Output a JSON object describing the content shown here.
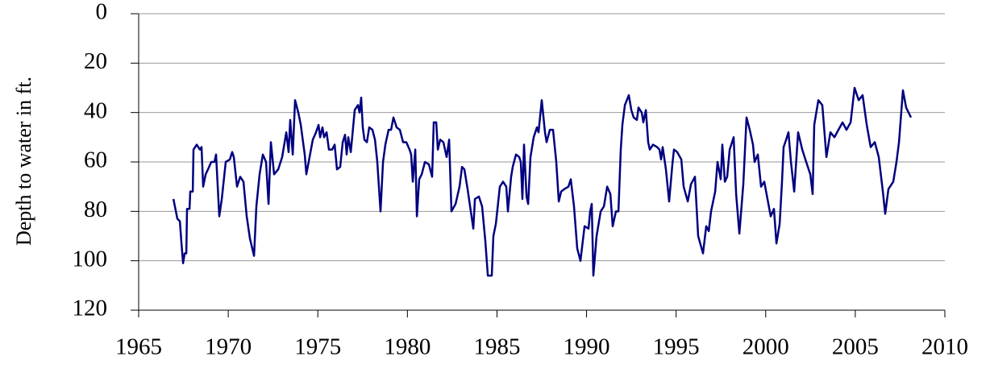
{
  "chart_data": {
    "type": "line",
    "y_label": "Depth to water in ft.",
    "color": "#000080",
    "y_inverted": true,
    "grid": true,
    "xlim": [
      1965,
      2010
    ],
    "xticks": [
      1965,
      1970,
      1975,
      1980,
      1985,
      1990,
      1995,
      2000,
      2005,
      2010
    ],
    "ylim": [
      0,
      120
    ],
    "yticks": [
      0,
      20,
      40,
      60,
      80,
      100,
      120
    ],
    "x": [
      1966.94,
      1967.16,
      1967.3,
      1967.39,
      1967.48,
      1967.57,
      1967.66,
      1967.7,
      1967.84,
      1967.88,
      1968.02,
      1968.06,
      1968.24,
      1968.42,
      1968.51,
      1968.6,
      1968.74,
      1968.87,
      1969.05,
      1969.23,
      1969.32,
      1969.5,
      1969.64,
      1969.86,
      1970.09,
      1970.22,
      1970.31,
      1970.49,
      1970.67,
      1970.85,
      1971.03,
      1971.21,
      1971.44,
      1971.57,
      1971.75,
      1971.93,
      1972.11,
      1972.25,
      1972.38,
      1972.56,
      1972.79,
      1973.01,
      1973.24,
      1973.37,
      1973.46,
      1973.6,
      1973.73,
      1973.91,
      1974.05,
      1974.14,
      1974.27,
      1974.36,
      1974.54,
      1974.72,
      1974.9,
      1975.04,
      1975.13,
      1975.26,
      1975.35,
      1975.49,
      1975.62,
      1975.8,
      1975.94,
      1976.07,
      1976.25,
      1976.39,
      1976.52,
      1976.61,
      1976.7,
      1976.84,
      1976.97,
      1977.06,
      1977.24,
      1977.33,
      1977.42,
      1977.51,
      1977.6,
      1977.74,
      1977.87,
      1978.05,
      1978.19,
      1978.32,
      1978.5,
      1978.64,
      1978.77,
      1978.95,
      1979.09,
      1979.22,
      1979.4,
      1979.58,
      1979.76,
      1979.94,
      1980.12,
      1980.21,
      1980.3,
      1980.44,
      1980.53,
      1980.66,
      1980.8,
      1980.98,
      1981.2,
      1981.38,
      1981.47,
      1981.61,
      1981.7,
      1981.83,
      1982.01,
      1982.19,
      1982.33,
      1982.46,
      1982.69,
      1982.91,
      1983.05,
      1983.18,
      1983.36,
      1983.54,
      1983.68,
      1983.77,
      1983.99,
      1984.17,
      1984.35,
      1984.49,
      1984.71,
      1984.8,
      1984.94,
      1985.16,
      1985.34,
      1985.52,
      1985.61,
      1985.79,
      1985.88,
      1986.06,
      1986.24,
      1986.33,
      1986.42,
      1986.51,
      1986.65,
      1986.74,
      1986.87,
      1987.05,
      1987.23,
      1987.32,
      1987.5,
      1987.68,
      1987.77,
      1987.95,
      1988.13,
      1988.31,
      1988.45,
      1988.58,
      1988.76,
      1988.99,
      1989.12,
      1989.3,
      1989.48,
      1989.66,
      1989.89,
      1990.11,
      1990.2,
      1990.29,
      1990.38,
      1990.56,
      1990.79,
      1990.97,
      1991.15,
      1991.33,
      1991.46,
      1991.64,
      1991.78,
      1991.91,
      1992.0,
      1992.14,
      1992.36,
      1992.5,
      1992.63,
      1992.81,
      1992.9,
      1993.08,
      1993.17,
      1993.31,
      1993.44,
      1993.53,
      1993.71,
      1993.94,
      1994.07,
      1994.16,
      1994.25,
      1994.43,
      1994.61,
      1994.79,
      1994.88,
      1995.06,
      1995.29,
      1995.42,
      1995.65,
      1995.83,
      1996.05,
      1996.23,
      1996.5,
      1996.68,
      1996.82,
      1996.95,
      1997.18,
      1997.31,
      1997.49,
      1997.58,
      1997.72,
      1997.85,
      1997.99,
      1998.21,
      1998.35,
      1998.53,
      1998.75,
      1998.93,
      1999.11,
      1999.29,
      1999.38,
      1999.56,
      1999.74,
      1999.92,
      2000.1,
      2000.28,
      2000.46,
      2000.6,
      2000.78,
      2000.91,
      2001.0,
      2001.14,
      2001.27,
      2001.41,
      2001.59,
      2001.81,
      2002.04,
      2002.26,
      2002.49,
      2002.62,
      2002.71,
      2002.94,
      2003.16,
      2003.39,
      2003.61,
      2003.84,
      2004.06,
      2004.29,
      2004.51,
      2004.74,
      2004.96,
      2005.19,
      2005.41,
      2005.64,
      2005.86,
      2006.09,
      2006.31,
      2006.54,
      2006.67,
      2006.85,
      2007.12,
      2007.3,
      2007.44,
      2007.66,
      2007.84,
      2008.11
    ],
    "values": [
      75,
      83,
      84,
      93,
      101,
      97,
      97,
      79,
      79,
      72,
      72,
      55,
      53,
      55,
      54,
      70,
      65,
      63,
      60,
      60,
      57,
      82,
      75,
      60,
      59,
      56,
      58,
      70,
      66,
      68,
      82,
      91,
      98,
      78,
      65,
      57,
      60,
      77,
      52,
      65,
      63,
      58,
      48,
      56,
      43,
      57,
      35,
      40,
      45,
      50,
      57,
      65,
      58,
      51,
      48,
      45,
      50,
      46,
      50,
      48,
      55,
      55,
      53,
      63,
      62,
      52,
      49,
      57,
      50,
      56,
      46,
      39,
      37,
      40,
      34,
      46,
      51,
      52,
      46,
      47,
      51,
      60,
      80,
      60,
      53,
      47,
      47,
      42,
      46,
      47,
      52,
      52,
      55,
      57,
      68,
      55,
      82,
      67,
      65,
      60,
      61,
      66,
      44,
      44,
      55,
      51,
      52,
      58,
      51,
      80,
      77,
      70,
      62,
      63,
      71,
      80,
      87,
      75,
      74,
      78,
      92,
      106,
      106,
      90,
      85,
      70,
      68,
      70,
      80,
      66,
      62,
      57,
      58,
      60,
      75,
      53,
      74,
      77,
      58,
      50,
      46,
      48,
      35,
      48,
      52,
      47,
      47,
      60,
      76,
      72,
      71,
      70,
      67,
      78,
      95,
      100,
      86,
      87,
      80,
      77,
      106,
      90,
      80,
      78,
      70,
      73,
      86,
      80,
      80,
      55,
      45,
      37,
      33,
      39,
      42,
      43,
      38,
      40,
      44,
      39,
      52,
      55,
      53,
      54,
      55,
      59,
      54,
      63,
      76,
      61,
      55,
      56,
      59,
      70,
      76,
      69,
      66,
      90,
      97,
      86,
      88,
      80,
      72,
      60,
      67,
      53,
      68,
      66,
      55,
      50,
      73,
      89,
      69,
      42,
      47,
      53,
      60,
      57,
      70,
      68,
      75,
      82,
      79,
      93,
      85,
      68,
      54,
      51,
      48,
      60,
      72,
      48,
      55,
      60,
      65,
      73,
      45,
      35,
      37,
      58,
      48,
      50,
      47,
      44,
      47,
      44,
      30,
      35,
      33,
      45,
      54,
      52,
      58,
      72,
      81,
      71,
      68,
      60,
      52,
      31,
      38,
      42
    ]
  }
}
